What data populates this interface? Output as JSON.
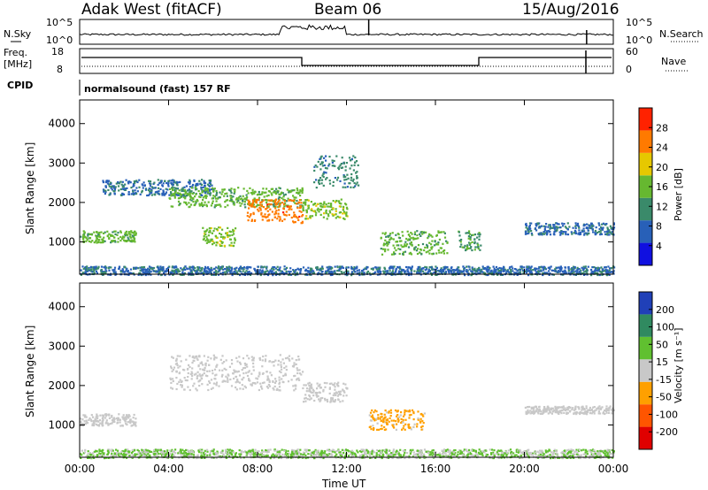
{
  "header": {
    "site": "Adak West (fitACF)",
    "beam": "Beam 06",
    "date": "15/Aug/2016"
  },
  "noise_panel": {
    "left_label": "N.Sky",
    "right_label": "N.Search",
    "left_ticks": [
      "10^5",
      "10^0"
    ],
    "right_ticks": [
      "10^5",
      "10^0"
    ]
  },
  "freq_panel": {
    "left_label_1": "Freq.",
    "left_label_2": "[MHz]",
    "right_label": "Nave",
    "left_ticks": [
      "18",
      "8"
    ],
    "right_ticks": [
      "60",
      "0"
    ]
  },
  "cpid": {
    "label": "CPID",
    "value": "normalsound (fast) 157 RF"
  },
  "colors": {
    "power": [
      "#1010e0",
      "#2860b8",
      "#3a8a6a",
      "#66b830",
      "#e6c800",
      "#ff7a00",
      "#ff2200"
    ],
    "velocity": [
      "#e00000",
      "#ff5500",
      "#ffa000",
      "#c8c8c8",
      "#60c030",
      "#308a60",
      "#2040b8"
    ]
  },
  "chart_data": [
    {
      "type": "heatmap",
      "title": "Power",
      "ylabel": "Slant Range [km]",
      "ylim": [
        180,
        4600
      ],
      "yticks": [
        "4000",
        "3000",
        "2000",
        "1000"
      ],
      "xlim": [
        "00:00",
        "24:00"
      ],
      "colorbar": {
        "label": "Power [dB]",
        "ticks": [
          "28",
          "24",
          "20",
          "16",
          "12",
          "8",
          "4"
        ],
        "range": [
          0,
          30
        ]
      },
      "regions": [
        {
          "t": [
            1.0,
            6.0
          ],
          "r": [
            2200,
            2600
          ],
          "v": 8
        },
        {
          "t": [
            4.0,
            10.0
          ],
          "r": [
            1900,
            2400
          ],
          "v": 14
        },
        {
          "t": [
            7.5,
            10.0
          ],
          "r": [
            1500,
            2100
          ],
          "v": 24
        },
        {
          "t": [
            10.0,
            12.0
          ],
          "r": [
            1600,
            2100
          ],
          "v": 16
        },
        {
          "t": [
            0.0,
            2.5
          ],
          "r": [
            1000,
            1300
          ],
          "v": 14
        },
        {
          "t": [
            5.5,
            7.0
          ],
          "r": [
            900,
            1400
          ],
          "v": 16
        },
        {
          "t": [
            10.5,
            12.5
          ],
          "r": [
            2400,
            3200
          ],
          "v": 10
        },
        {
          "t": [
            13.5,
            16.5
          ],
          "r": [
            700,
            1300
          ],
          "v": 14
        },
        {
          "t": [
            17.0,
            18.0
          ],
          "r": [
            800,
            1300
          ],
          "v": 12
        },
        {
          "t": [
            20.0,
            24.0
          ],
          "r": [
            1200,
            1500
          ],
          "v": 8
        },
        {
          "t": [
            0.0,
            24.0
          ],
          "r": [
            180,
            400
          ],
          "v": 8
        }
      ]
    },
    {
      "type": "heatmap",
      "title": "Velocity",
      "ylabel": "Slant Range [km]",
      "ylim": [
        180,
        4600
      ],
      "yticks": [
        "4000",
        "3000",
        "2000",
        "1000"
      ],
      "xlim": [
        "00:00",
        "24:00"
      ],
      "xticks": [
        "00:00",
        "04:00",
        "08:00",
        "12:00",
        "16:00",
        "20:00",
        "00:00"
      ],
      "xlabel": "Time UT",
      "colorbar": {
        "label": "Velocity [m s⁻¹]",
        "ticks": [
          "200",
          "100",
          "50",
          "15",
          "-15",
          "-50",
          "-100",
          "-200"
        ],
        "range": [
          -250,
          250
        ]
      },
      "regions": [
        {
          "t": [
            0.0,
            2.5
          ],
          "r": [
            1000,
            1300
          ],
          "v": 0
        },
        {
          "t": [
            4.0,
            10.0
          ],
          "r": [
            1900,
            2800
          ],
          "v": 0
        },
        {
          "t": [
            10.0,
            12.0
          ],
          "r": [
            1600,
            2100
          ],
          "v": 0
        },
        {
          "t": [
            13.0,
            15.5
          ],
          "r": [
            900,
            1400
          ],
          "v": -60
        },
        {
          "t": [
            0.0,
            24.0
          ],
          "r": [
            180,
            400
          ],
          "v": 40
        },
        {
          "t": [
            20.0,
            24.0
          ],
          "r": [
            1300,
            1500
          ],
          "v": 0
        }
      ]
    }
  ]
}
